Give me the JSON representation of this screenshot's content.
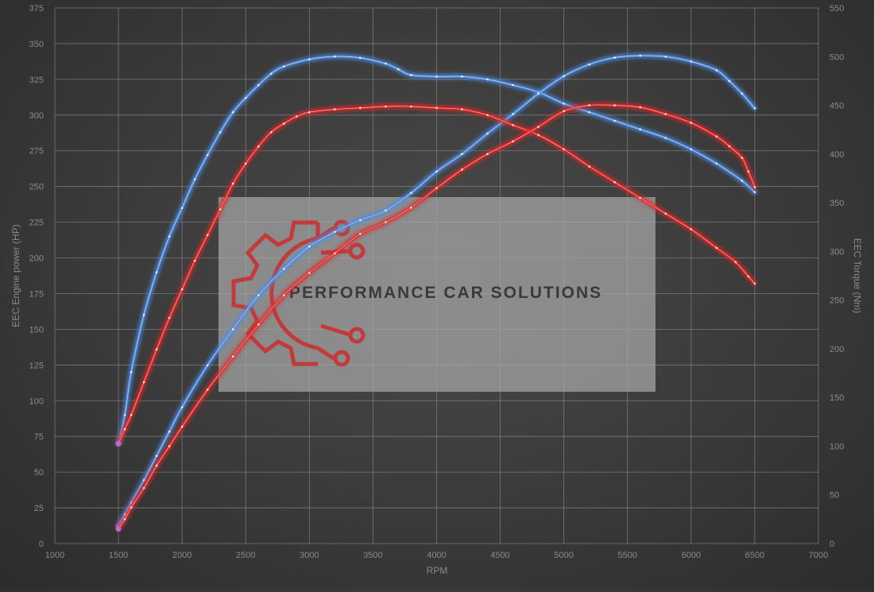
{
  "chart_data": {
    "type": "line",
    "x_axis": {
      "label": "RPM",
      "min": 1000,
      "max": 7000,
      "ticks": [
        1000,
        1500,
        2000,
        2500,
        3000,
        3500,
        4000,
        4500,
        5000,
        5500,
        6000,
        6500,
        7000
      ]
    },
    "y_axis_left": {
      "label": "EEC Engine power (HP)",
      "min": 0,
      "max": 375,
      "ticks": [
        0,
        25,
        50,
        75,
        100,
        125,
        150,
        175,
        200,
        225,
        250,
        275,
        300,
        325,
        350,
        375
      ]
    },
    "y_axis_right": {
      "label": "EEC Torque (Nm)",
      "min": 0,
      "max": 550,
      "ticks": [
        0,
        50,
        100,
        150,
        200,
        250,
        300,
        350,
        400,
        450,
        500,
        550
      ]
    },
    "grid": true,
    "legend": "none",
    "series": [
      {
        "axis": "left",
        "color": "#4a8fe6",
        "x": [
          1500,
          1550,
          1600,
          1700,
          1800,
          1900,
          2000,
          2100,
          2200,
          2300,
          2400,
          2500,
          2600,
          2700,
          2800,
          3000,
          3200,
          3400,
          3600,
          3700,
          3800,
          4000,
          4200,
          4400,
          4600,
          4800,
          5000,
          5200,
          5400,
          5600,
          5800,
          6000,
          6200,
          6400,
          6500
        ],
        "y": [
          70,
          90,
          120,
          160,
          190,
          215,
          235,
          255,
          272,
          288,
          302,
          312,
          321,
          329,
          334,
          339,
          341,
          340,
          336,
          332,
          328,
          327,
          327,
          325,
          321,
          316,
          308,
          302,
          296,
          290,
          284,
          276,
          266,
          254,
          246
        ]
      },
      {
        "axis": "right",
        "color": "#4a8fe6",
        "x": [
          1500,
          1550,
          1600,
          1700,
          1800,
          1900,
          2000,
          2200,
          2400,
          2600,
          2800,
          3000,
          3200,
          3400,
          3600,
          3800,
          4000,
          4200,
          4400,
          4600,
          4800,
          5000,
          5200,
          5400,
          5600,
          5800,
          6000,
          6200,
          6300,
          6400,
          6500
        ],
        "y": [
          18,
          30,
          42,
          65,
          90,
          115,
          140,
          183,
          220,
          255,
          282,
          305,
          320,
          332,
          342,
          360,
          382,
          400,
          421,
          441,
          462,
          480,
          492,
          499,
          501,
          500,
          495,
          486,
          475,
          462,
          447
        ]
      },
      {
        "axis": "left",
        "color": "#e02828",
        "x": [
          1500,
          1550,
          1600,
          1700,
          1800,
          1900,
          2000,
          2100,
          2200,
          2300,
          2400,
          2500,
          2600,
          2700,
          2800,
          2900,
          3000,
          3200,
          3400,
          3600,
          3800,
          4000,
          4200,
          4400,
          4600,
          4800,
          5000,
          5200,
          5400,
          5600,
          5800,
          6000,
          6200,
          6350,
          6450,
          6500
        ],
        "y": [
          70,
          80,
          90,
          113,
          136,
          158,
          178,
          198,
          216,
          234,
          252,
          266,
          278,
          288,
          294,
          299,
          302,
          304,
          305,
          306,
          306,
          305,
          304,
          300,
          293,
          286,
          276,
          264,
          253,
          242,
          231,
          220,
          207,
          197,
          187,
          182
        ]
      },
      {
        "axis": "right",
        "color": "#e02828",
        "x": [
          1500,
          1550,
          1600,
          1700,
          1800,
          1900,
          2000,
          2200,
          2400,
          2600,
          2800,
          3000,
          3200,
          3400,
          3600,
          3800,
          4000,
          4200,
          4400,
          4600,
          4800,
          5000,
          5200,
          5400,
          5600,
          5800,
          6000,
          6200,
          6300,
          6400,
          6450,
          6500
        ],
        "y": [
          15,
          25,
          37,
          57,
          80,
          100,
          120,
          158,
          192,
          225,
          255,
          278,
          298,
          318,
          330,
          345,
          365,
          384,
          400,
          413,
          428,
          444,
          450,
          450,
          448,
          441,
          432,
          418,
          408,
          396,
          382,
          366
        ]
      }
    ]
  },
  "watermark": {
    "text": "PERFORMANCE CAR SOLUTIONS",
    "icon": "gear-circuit-icon",
    "color": "#c23a3a"
  }
}
